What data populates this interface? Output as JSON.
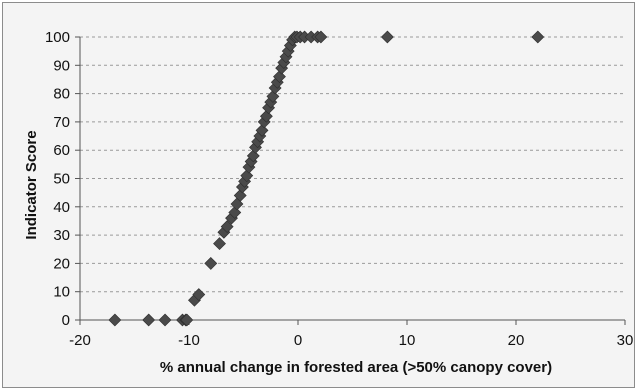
{
  "chart_data": {
    "type": "scatter",
    "title": "",
    "xlabel": "% annual change in forested area (>50% canopy cover)",
    "ylabel": "Indicator  Score",
    "xlim": [
      -20,
      30
    ],
    "ylim": [
      0,
      100
    ],
    "xticks": [
      "-20",
      "-10",
      "0",
      "10",
      "20",
      "30"
    ],
    "yticks": [
      "0",
      "10",
      "20",
      "30",
      "40",
      "50",
      "60",
      "70",
      "80",
      "90",
      "100"
    ],
    "grid": "horizontal dashed",
    "marker": "diamond",
    "marker_color": "#4a4a4a",
    "series": [
      {
        "x": [
          -16.8,
          -13.7,
          -12.2,
          -10.6,
          -10.3,
          -10.2,
          -9.5,
          -9.1,
          -8.0,
          -7.2,
          -6.8,
          -6.5,
          -6.1,
          -5.8,
          -5.6,
          -5.3,
          -5.1,
          -4.9,
          -4.7,
          -4.5,
          -4.3,
          -4.1,
          -3.9,
          -3.7,
          -3.5,
          -3.3,
          -3.1,
          -2.9,
          -2.7,
          -2.5,
          -2.3,
          -2.1,
          -1.9,
          -1.7,
          -1.5,
          -1.3,
          -1.1,
          -0.9,
          -0.7,
          -0.5,
          -0.3,
          -0.1,
          0.2,
          0.6,
          1.2,
          1.8,
          2.1,
          8.2,
          22.0
        ],
        "y": [
          0,
          0,
          0,
          0,
          0,
          0,
          7,
          9,
          20,
          27,
          31,
          33,
          36,
          38,
          41,
          44,
          47,
          49,
          51,
          54,
          56,
          58,
          61,
          63,
          65,
          67,
          70,
          72,
          75,
          77,
          79,
          82,
          84,
          86,
          89,
          91,
          93,
          95,
          97,
          99,
          100,
          100,
          100,
          100,
          100,
          100,
          100,
          100,
          100
        ]
      }
    ]
  }
}
